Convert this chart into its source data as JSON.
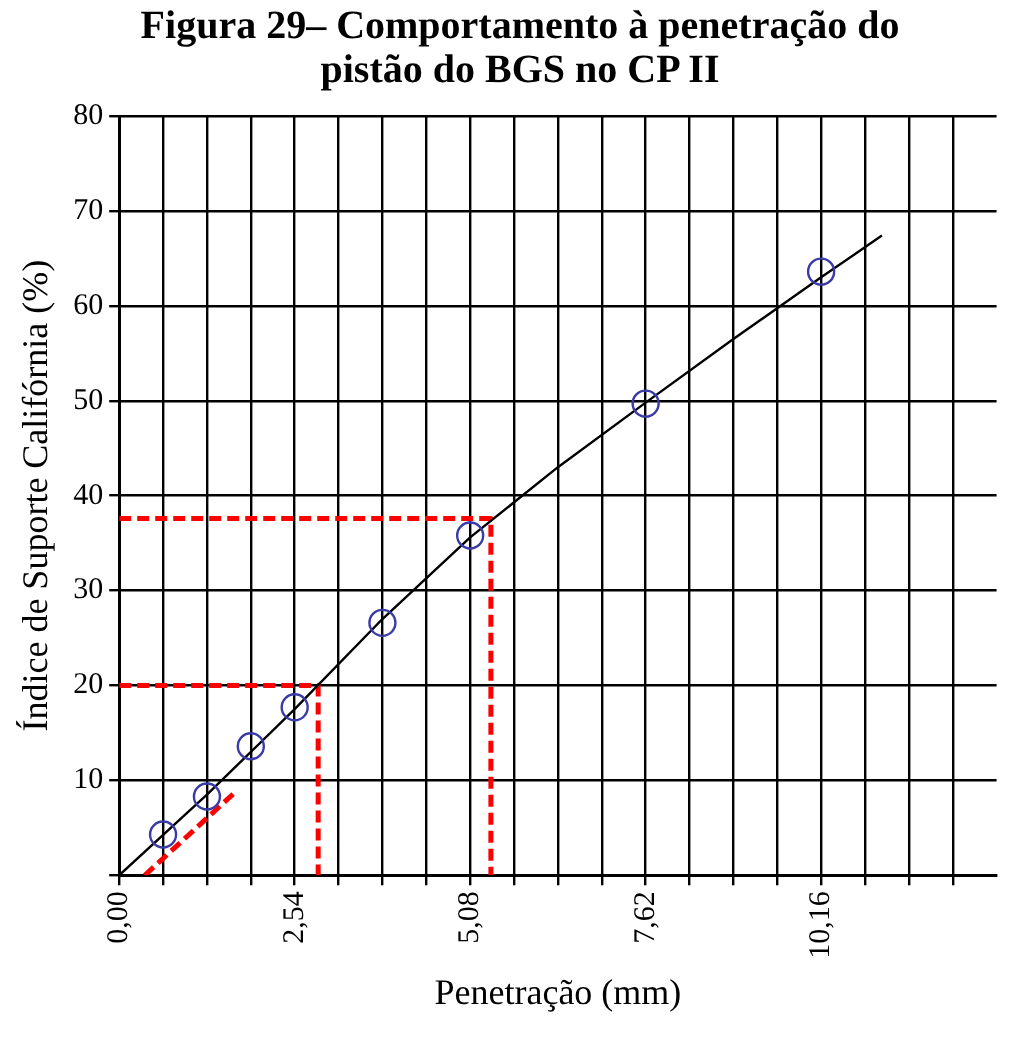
{
  "chart_data": {
    "type": "scatter",
    "title": "Figura 29– Comportamento à penetração do pistão do BGS no CP II",
    "xlabel": "Penetração (mm)",
    "ylabel": "Índice de Suporte Califórnia (%)",
    "xlim": [
      0,
      12.7
    ],
    "ylim": [
      0,
      80
    ],
    "xticks": [
      {
        "value": 0,
        "label": "0,00"
      },
      {
        "value": 0.635,
        "label": null
      },
      {
        "value": 1.27,
        "label": null
      },
      {
        "value": 1.905,
        "label": null
      },
      {
        "value": 2.54,
        "label": "2,54"
      },
      {
        "value": 3.175,
        "label": null
      },
      {
        "value": 3.81,
        "label": null
      },
      {
        "value": 4.445,
        "label": null
      },
      {
        "value": 5.08,
        "label": "5,08"
      },
      {
        "value": 5.715,
        "label": null
      },
      {
        "value": 6.35,
        "label": null
      },
      {
        "value": 6.985,
        "label": null
      },
      {
        "value": 7.62,
        "label": "7,62"
      },
      {
        "value": 8.255,
        "label": null
      },
      {
        "value": 8.89,
        "label": null
      },
      {
        "value": 9.525,
        "label": null
      },
      {
        "value": 10.16,
        "label": "10,16"
      },
      {
        "value": 10.795,
        "label": null
      },
      {
        "value": 11.43,
        "label": null
      },
      {
        "value": 12.065,
        "label": null
      }
    ],
    "yticks": [
      {
        "value": 0,
        "label": null
      },
      10,
      20,
      30,
      40,
      50,
      60,
      70,
      80
    ],
    "grid": true,
    "series": [
      {
        "type": "line",
        "color": "#000000",
        "marker": "none",
        "line_style": "solid",
        "x": [
          0,
          1.27,
          2.54,
          3.81,
          5.08,
          6.35,
          7.62,
          8.89,
          10.16,
          11.04
        ],
        "values": [
          0,
          8.5,
          17.5,
          27,
          35.6,
          43,
          49.8,
          56.5,
          63,
          67.4
        ]
      },
      {
        "color": "#3a3aa8",
        "marker": "circle",
        "x": [
          0.635,
          1.27,
          1.905,
          2.54,
          3.81,
          5.08,
          7.62,
          10.16
        ],
        "values": [
          4.3,
          8.3,
          13.6,
          17.7,
          26.6,
          35.8,
          49.7,
          63.6
        ]
      },
      {
        "type": "line",
        "color": "#ff0000",
        "marker": "none",
        "line_style": "dashed",
        "x": [
          0.37,
          1.7
        ],
        "values": [
          0,
          8.9
        ]
      },
      {
        "type": "line",
        "color": "#ff0000",
        "marker": "none",
        "line_style": "dashed",
        "x": [
          0,
          2.88,
          2.88
        ],
        "values": [
          20,
          20,
          0
        ]
      },
      {
        "type": "line",
        "color": "#ff0000",
        "marker": "none",
        "line_style": "dashed",
        "x": [
          0,
          5.38,
          5.38
        ],
        "values": [
          37.6,
          37.6,
          0
        ]
      }
    ]
  }
}
